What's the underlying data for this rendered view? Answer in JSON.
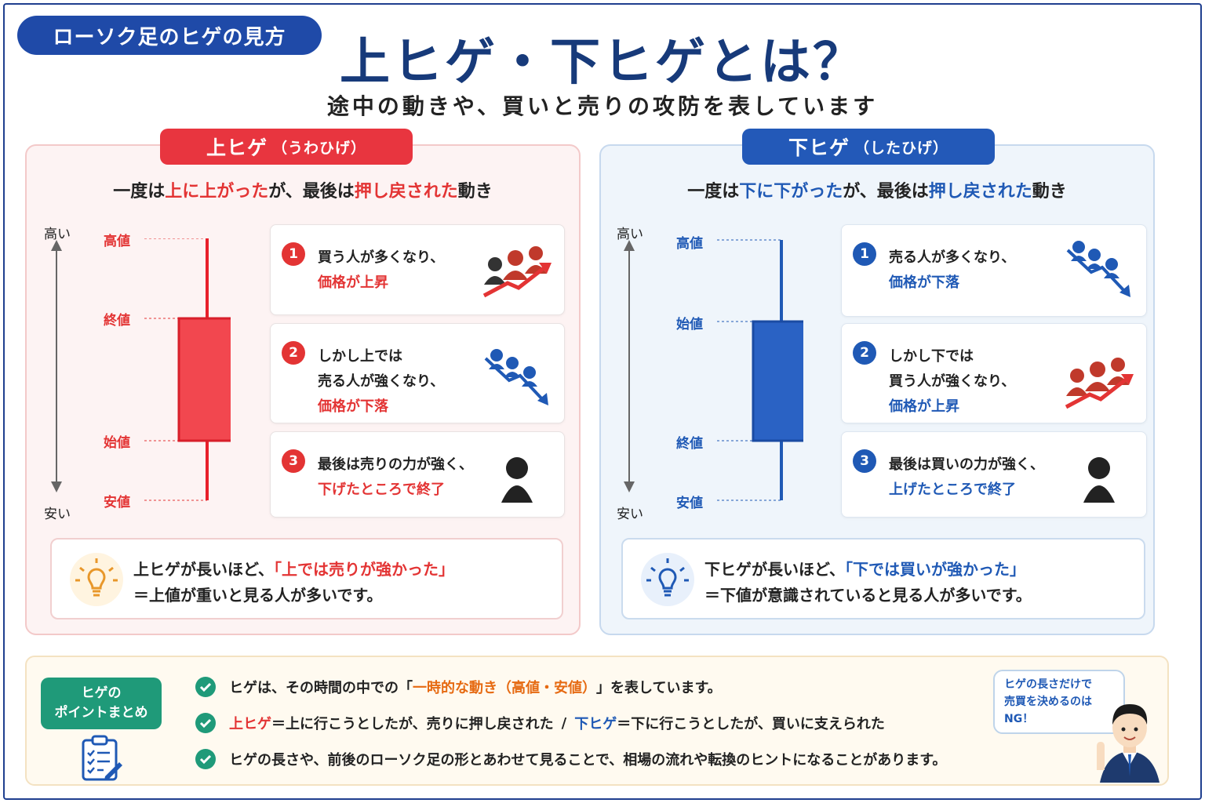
{
  "header": {
    "badge": "ローソク足のヒゲの見方",
    "title": "上ヒゲ・下ヒゲとは？",
    "subtitle": "途中の動きや、買いと売りの攻防を表しています"
  },
  "colors": {
    "red": "#e33434",
    "blue": "#1f59b5",
    "green": "#1f9a79",
    "navy": "#173a7a",
    "orange": "#e66a12"
  },
  "upper": {
    "tab": "上ヒゲ",
    "tab_reading": "（うわひげ）",
    "desc": {
      "p1": "一度は",
      "h1": "上に上がった",
      "p2": "が、最後は",
      "h2": "押し戻された",
      "p3": "動き"
    },
    "axis_high": "高い",
    "axis_low": "安い",
    "price_labels": {
      "high": "高値",
      "close": "終値",
      "open": "始値",
      "low": "安値"
    },
    "candle_color": "red",
    "steps": [
      {
        "num": "1",
        "line1": "買う人が多くなり、",
        "line2": "",
        "hl": "価格が上昇",
        "icon": "people-rising-icon"
      },
      {
        "num": "2",
        "line1": "しかし上では",
        "line2": "売る人が強くなり、",
        "hl": "価格が下落",
        "icon": "people-falling-icon"
      },
      {
        "num": "3",
        "line1": "最後は売りの力が強く、",
        "line2": "",
        "hl": "下げたところで終了",
        "icon": "person-icon"
      }
    ],
    "tip": {
      "p1": "上ヒゲが長いほど、",
      "hl": "「上では売りが強かった」",
      "line2": "＝上値が重いと見る人が多いです。"
    }
  },
  "lower": {
    "tab": "下ヒゲ",
    "tab_reading": "（したひげ）",
    "desc": {
      "p1": "一度は",
      "h1": "下に下がった",
      "p2": "が、最後は",
      "h2": "押し戻された",
      "p3": "動き"
    },
    "axis_high": "高い",
    "axis_low": "安い",
    "price_labels": {
      "high": "高値",
      "open": "始値",
      "close": "終値",
      "low": "安値"
    },
    "candle_color": "blue",
    "steps": [
      {
        "num": "1",
        "line1": "売る人が多くなり、",
        "line2": "",
        "hl": "価格が下落",
        "icon": "people-falling-icon"
      },
      {
        "num": "2",
        "line1": "しかし下では",
        "line2": "買う人が強くなり、",
        "hl": "価格が上昇",
        "icon": "people-rising-icon"
      },
      {
        "num": "3",
        "line1": "最後は買いの力が強く、",
        "line2": "",
        "hl": "上げたところで終了",
        "icon": "person-icon"
      }
    ],
    "tip": {
      "p1": "下ヒゲが長いほど、",
      "hl": "「下では買いが強かった」",
      "line2": "＝下値が意識されていると見る人が多いです。"
    }
  },
  "summary": {
    "tag_line1": "ヒゲの",
    "tag_line2": "ポイントまとめ",
    "item1": {
      "p1": "ヒゲは、その時間の中での「",
      "hl": "一時的な動き（高値・安値）",
      "p2": "」を表しています。"
    },
    "item2": {
      "h1": "上ヒゲ",
      "p1": "＝上に行こうとしたが、売りに押し戻された",
      "sep": "/",
      "h2": "下ヒゲ",
      "p2": "＝下に行こうとしたが、買いに支えられた"
    },
    "item3": "ヒゲの長さや、前後のローソク足の形とあわせて見ることで、相場の流れや転換のヒントになることがあります。",
    "speech": {
      "line1": "ヒゲの長さだけで",
      "line2": "売買を決めるのは",
      "line3": "NG！"
    }
  }
}
